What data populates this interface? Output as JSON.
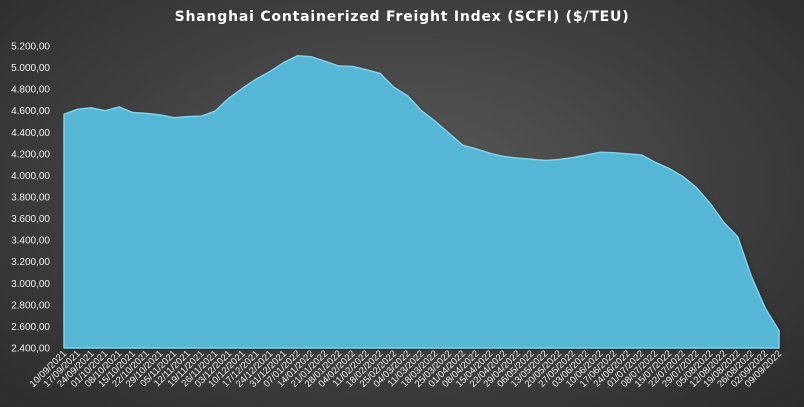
{
  "chart_data": {
    "type": "area",
    "title": "Shanghai Containerized Freight Index  (SCFI) ($/TEU)",
    "xlabel": "",
    "ylabel": "",
    "ylim": [
      2400,
      5200
    ],
    "yticks": [
      2400,
      2600,
      2800,
      3000,
      3200,
      3400,
      3600,
      3800,
      4000,
      4200,
      4400,
      4600,
      4800,
      5000,
      5200
    ],
    "ytick_labels": [
      "2.400,00",
      "2.600,00",
      "2.800,00",
      "3.000,00",
      "3.200,00",
      "3.400,00",
      "3.600,00",
      "3.800,00",
      "4.000,00",
      "4.200,00",
      "4.400,00",
      "4.600,00",
      "4.800,00",
      "5.000,00",
      "5.200,00"
    ],
    "grid": false,
    "legend": "none",
    "fill_color": "#55b7d5",
    "line_color": "#7fd3ea",
    "x": [
      "10/09/2021",
      "17/09/2021",
      "24/09/2021",
      "01/10/2021",
      "08/10/2021",
      "15/10/2021",
      "22/10/2021",
      "29/10/2021",
      "05/11/2021",
      "12/11/2021",
      "19/11/2021",
      "26/11/2021",
      "03/12/2021",
      "10/12/2021",
      "17/12/2021",
      "24/12/2021",
      "31/12/2021",
      "07/01/2022",
      "14/01/2022",
      "21/01/2022",
      "28/01/2022",
      "04/02/2022",
      "11/02/2022",
      "18/02/2022",
      "25/02/2022",
      "04/03/2022",
      "11/03/2022",
      "18/03/2022",
      "25/03/2022",
      "01/04/2022",
      "08/04/2022",
      "15/04/2022",
      "22/04/2022",
      "29/04/2022",
      "06/05/2022",
      "13/05/2022",
      "20/05/2022",
      "27/05/2022",
      "03/06/2022",
      "10/06/2022",
      "17/06/2022",
      "24/06/2022",
      "01/07/2022",
      "08/07/2022",
      "15/07/2022",
      "22/07/2022",
      "29/07/2022",
      "05/08/2022",
      "12/08/2022",
      "19/08/2022",
      "26/08/2022",
      "02/09/2022",
      "09/09/2022"
    ],
    "values": [
      4568,
      4614,
      4627,
      4600,
      4635,
      4583,
      4575,
      4562,
      4535,
      4545,
      4550,
      4597,
      4717,
      4810,
      4895,
      4965,
      5048,
      5110,
      5100,
      5058,
      5014,
      5010,
      4980,
      4945,
      4817,
      4738,
      4600,
      4502,
      4390,
      4280,
      4245,
      4205,
      4175,
      4160,
      4150,
      4138,
      4148,
      4165,
      4190,
      4215,
      4210,
      4200,
      4190,
      4122,
      4065,
      3990,
      3887,
      3739,
      3562,
      3430,
      3060,
      2770,
      2560
    ]
  }
}
